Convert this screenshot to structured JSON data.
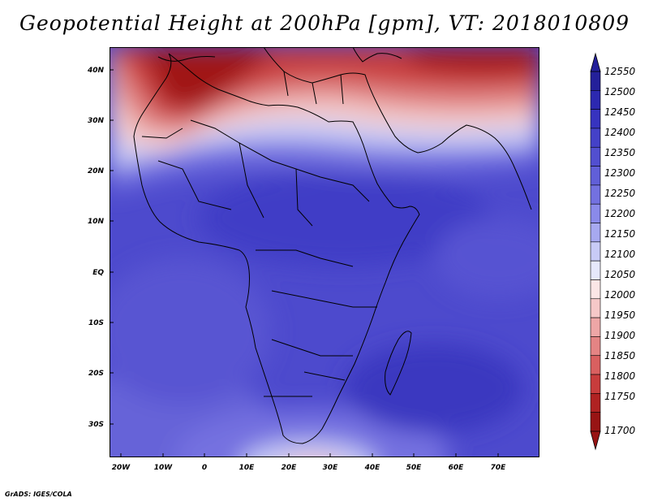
{
  "title": "Geopotential Height at 200hPa [gpm], VT: 2018010809",
  "credit": "GrADS: IGES/COLA",
  "lon_ticks": [
    "20W",
    "10W",
    "0",
    "10E",
    "20E",
    "30E",
    "40E",
    "50E",
    "60E",
    "70E"
  ],
  "lat_ticks": [
    "40N",
    "30N",
    "20N",
    "10N",
    "EQ",
    "10S",
    "20S",
    "30S"
  ],
  "colorbar": {
    "labels": [
      "12550",
      "12500",
      "12450",
      "12400",
      "12350",
      "12300",
      "12250",
      "12200",
      "12150",
      "12100",
      "12050",
      "12000",
      "11950",
      "11900",
      "11850",
      "11800",
      "11750",
      "11700"
    ],
    "colors": [
      "#24209a",
      "#2c28b0",
      "#3733bf",
      "#4441c8",
      "#524fd0",
      "#615fd8",
      "#7371e0",
      "#8a8aea",
      "#a7a9f0",
      "#c8cbf6",
      "#e6e8fb",
      "#fbe6e6",
      "#f6c8c8",
      "#eea6a6",
      "#e48484",
      "#d96060",
      "#c83c3c",
      "#b02222",
      "#981414"
    ]
  }
}
